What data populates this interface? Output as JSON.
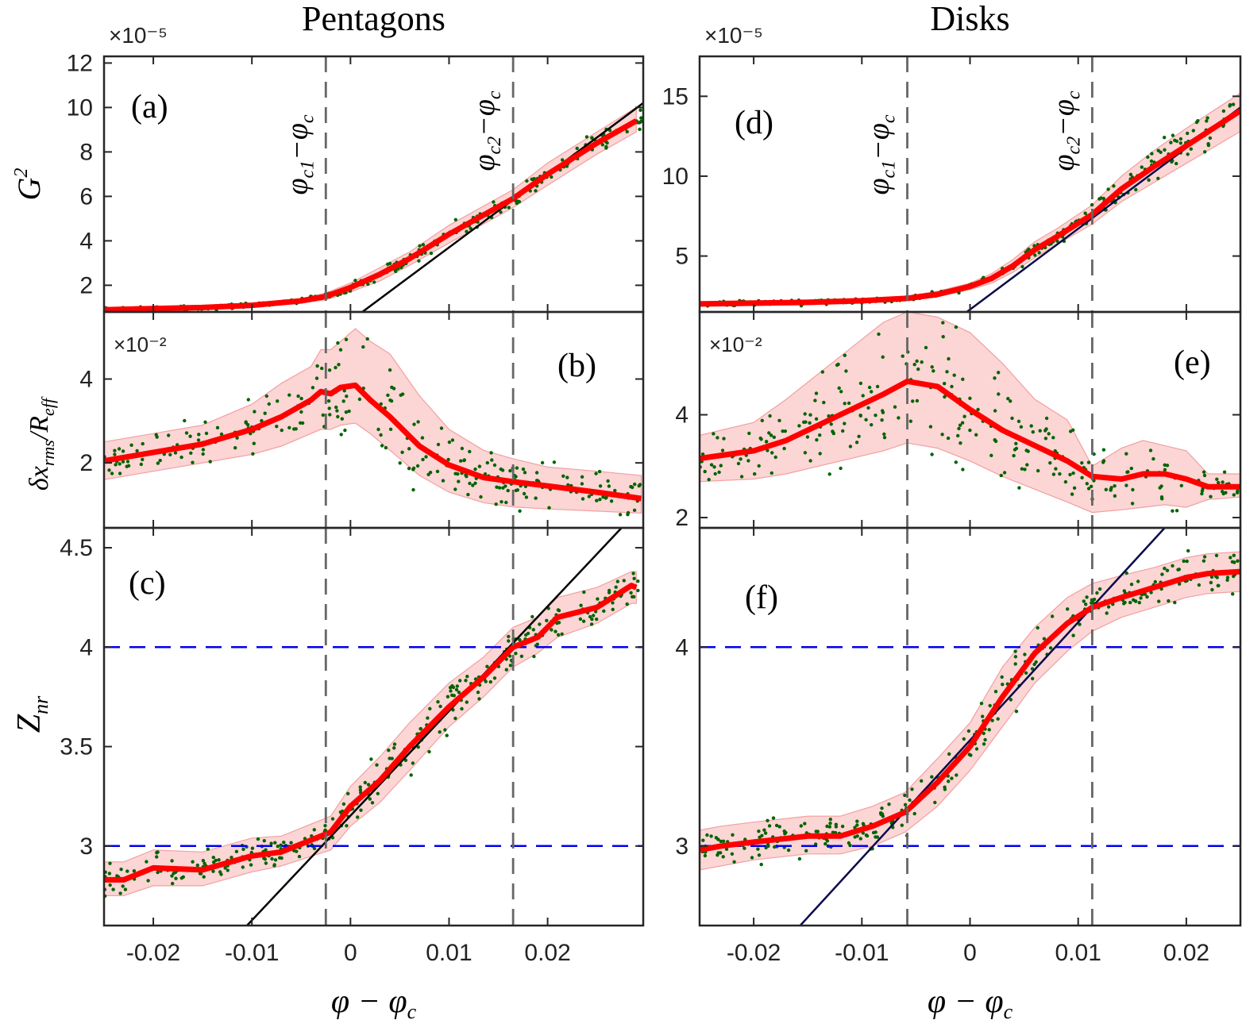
{
  "columns": [
    {
      "title": "Pentagons",
      "xlim": [
        -0.025,
        0.0297
      ],
      "xticks": [
        -0.02,
        -0.01,
        0,
        0.01,
        0.02
      ],
      "xtick_labels": [
        "-0.02",
        "-0.01",
        "0",
        "0.01",
        "0.02"
      ],
      "xlabel": "φ − φc",
      "vlines": [
        -0.0025,
        0.0165
      ],
      "vline_labels": [
        {
          "main": "φ",
          "sub": "c1",
          "tail": "−φ",
          "sub2": "c"
        },
        {
          "main": "φ",
          "sub": "c2",
          "tail": "−φ",
          "sub2": "c"
        }
      ]
    },
    {
      "title": "Disks",
      "xlim": [
        -0.025,
        0.025
      ],
      "xticks": [
        -0.02,
        -0.01,
        0,
        0.01,
        0.02
      ],
      "xtick_labels": [
        "-0.02",
        "-0.01",
        "0",
        "0.01",
        "0.02"
      ],
      "xlabel": "φ − φc",
      "vlines": [
        -0.0058,
        0.0113
      ],
      "vline_labels": [
        {
          "main": "φ",
          "sub": "c1",
          "tail": "−φ",
          "sub2": "c"
        },
        {
          "main": "φ",
          "sub": "c2",
          "tail": "−φ",
          "sub2": "c"
        }
      ]
    }
  ],
  "row_labels": [
    {
      "text": "G",
      "sup": "2"
    },
    {
      "text": "δx",
      "sub": "rms",
      "tail": "/R",
      "sub2": "eff"
    },
    {
      "text": "Z",
      "sub": "nr"
    }
  ],
  "colors": {
    "mean_line": "#ff0000",
    "band_fill": "#fcd5d5",
    "band_edge": "#f2a0a0",
    "points": "#006400",
    "fit_pentagons": "#000000",
    "fit_disks": "#0a0a4a",
    "hlines": "#0000ee",
    "vlines": "#666666",
    "axes": "#262626"
  },
  "chart_data": [
    {
      "panel": "(a)",
      "type": "line",
      "column": "Pentagons",
      "ylabel": "G²",
      "exponent": "×10⁻⁵",
      "ylim": [
        0.8,
        12.3
      ],
      "yticks": [
        2,
        4,
        6,
        8,
        10,
        12
      ],
      "ytick_labels": [
        "2",
        "4",
        "6",
        "8",
        "10",
        "12"
      ],
      "mean": {
        "x": [
          -0.025,
          -0.02,
          -0.015,
          -0.01,
          -0.005,
          -0.0025,
          0,
          0.003,
          0.006,
          0.01,
          0.0165,
          0.02,
          0.025,
          0.029
        ],
        "y": [
          0.9,
          0.95,
          1.0,
          1.1,
          1.3,
          1.5,
          1.9,
          2.5,
          3.2,
          4.3,
          5.9,
          7.0,
          8.4,
          9.4
        ]
      },
      "band": {
        "lower": [
          0.8,
          0.85,
          0.9,
          1.0,
          1.2,
          1.35,
          1.7,
          2.2,
          2.9,
          3.9,
          5.5,
          6.5,
          7.9,
          8.9
        ],
        "upper": [
          1.0,
          1.05,
          1.1,
          1.2,
          1.4,
          1.65,
          2.1,
          2.8,
          3.5,
          4.7,
          6.3,
          7.5,
          8.9,
          10.0
        ]
      },
      "fit_line": {
        "x": [
          0.0012,
          0.0297
        ],
        "y": [
          0.8,
          10.2
        ]
      },
      "scatter": {
        "n": 300,
        "x_range": [
          -0.025,
          0.0295
        ],
        "noise": 0.25
      },
      "vline_labels_shown": true
    },
    {
      "panel": "(b)",
      "type": "line",
      "column": "Pentagons",
      "ylabel": "δx_rms/R_eff",
      "exponent": "×10⁻²",
      "ylim": [
        0.45,
        5.6
      ],
      "yticks": [
        2,
        4
      ],
      "ytick_labels": [
        "2",
        "4"
      ],
      "mean": {
        "x": [
          -0.025,
          -0.02,
          -0.015,
          -0.01,
          -0.007,
          -0.004,
          -0.003,
          -0.002,
          -0.001,
          0.0005,
          0.002,
          0.004,
          0.007,
          0.01,
          0.0135,
          0.0165,
          0.02,
          0.025,
          0.0295
        ],
        "y": [
          2.05,
          2.25,
          2.45,
          2.8,
          3.1,
          3.5,
          3.7,
          3.65,
          3.8,
          3.85,
          3.5,
          3.1,
          2.4,
          1.95,
          1.65,
          1.55,
          1.45,
          1.3,
          1.15
        ]
      },
      "band": {
        "lower": [
          1.6,
          1.8,
          2.0,
          2.2,
          2.4,
          2.7,
          2.8,
          2.8,
          2.9,
          2.95,
          2.7,
          2.3,
          1.7,
          1.3,
          1.05,
          0.95,
          0.9,
          0.85,
          0.8
        ],
        "upper": [
          2.5,
          2.7,
          2.9,
          3.4,
          3.9,
          4.3,
          4.7,
          4.7,
          4.9,
          5.2,
          4.9,
          4.6,
          3.6,
          2.8,
          2.3,
          2.1,
          1.9,
          1.8,
          1.7
        ]
      },
      "scatter": {
        "n": 280,
        "x_range": [
          -0.025,
          0.0295
        ],
        "noise": 0.55
      }
    },
    {
      "panel": "(c)",
      "type": "line",
      "column": "Pentagons",
      "ylabel": "Z_nr",
      "ylim": [
        2.6,
        4.6
      ],
      "yticks": [
        3,
        3.5,
        4,
        4.5
      ],
      "ytick_labels": [
        "3",
        "3.5",
        "4",
        "4.5"
      ],
      "mean": {
        "x": [
          -0.025,
          -0.023,
          -0.02,
          -0.015,
          -0.01,
          -0.007,
          -0.002,
          0,
          0.003,
          0.006,
          0.01,
          0.0135,
          0.0165,
          0.019,
          0.021,
          0.025,
          0.0285,
          0.029
        ],
        "y": [
          2.83,
          2.83,
          2.89,
          2.88,
          2.95,
          2.97,
          3.07,
          3.2,
          3.33,
          3.5,
          3.7,
          3.85,
          4.0,
          4.05,
          4.15,
          4.2,
          4.31,
          4.3
        ]
      },
      "band": {
        "lower": [
          2.75,
          2.75,
          2.8,
          2.8,
          2.87,
          2.9,
          2.98,
          3.1,
          3.22,
          3.38,
          3.6,
          3.75,
          3.9,
          3.97,
          4.05,
          4.12,
          4.22,
          4.22
        ],
        "upper": [
          2.92,
          2.92,
          2.98,
          2.97,
          3.04,
          3.05,
          3.15,
          3.3,
          3.45,
          3.62,
          3.82,
          3.95,
          4.1,
          4.15,
          4.25,
          4.3,
          4.38,
          4.38
        ]
      },
      "fit_line": {
        "x": [
          -0.0105,
          0.0275
        ],
        "y": [
          2.6,
          4.6
        ]
      },
      "hlines": [
        3,
        4
      ],
      "scatter": {
        "n": 320,
        "x_range": [
          -0.025,
          0.0295
        ],
        "noise": 0.06
      }
    },
    {
      "panel": "(d)",
      "type": "line",
      "column": "Disks",
      "ylabel": "G²",
      "exponent": "×10⁻⁵",
      "ylim": [
        1.5,
        17.5
      ],
      "yticks": [
        5,
        10,
        15
      ],
      "ytick_labels": [
        "5",
        "10",
        "15"
      ],
      "mean": {
        "x": [
          -0.025,
          -0.02,
          -0.015,
          -0.01,
          -0.0058,
          -0.003,
          0,
          0.002,
          0.004,
          0.006,
          0.008,
          0.0113,
          0.014,
          0.017,
          0.02,
          0.025
        ],
        "y": [
          2.0,
          2.05,
          2.1,
          2.2,
          2.35,
          2.6,
          3.1,
          3.6,
          4.4,
          5.4,
          6.2,
          7.6,
          9.2,
          10.6,
          11.9,
          14.1
        ]
      },
      "band": {
        "lower": [
          1.85,
          1.9,
          1.95,
          2.05,
          2.2,
          2.45,
          2.9,
          3.3,
          4.0,
          4.9,
          5.7,
          7.0,
          8.4,
          9.6,
          10.8,
          12.8
        ],
        "upper": [
          2.15,
          2.2,
          2.25,
          2.35,
          2.5,
          2.8,
          3.3,
          3.9,
          4.8,
          5.9,
          6.7,
          8.2,
          10.0,
          11.6,
          13.0,
          15.2
        ]
      },
      "fit_line": {
        "x": [
          -0.0003,
          0.025
        ],
        "y": [
          1.5,
          14.3
        ]
      },
      "scatter": {
        "n": 300,
        "x_range": [
          -0.025,
          0.0248
        ],
        "noise": 0.4
      },
      "vline_labels_shown": true
    },
    {
      "panel": "(e)",
      "type": "line",
      "column": "Disks",
      "ylabel": "δx_rms/R_eff",
      "exponent": "×10⁻²",
      "ylim": [
        1.8,
        6.0
      ],
      "yticks": [
        2,
        4
      ],
      "ytick_labels": [
        "2",
        "4"
      ],
      "mean": {
        "x": [
          -0.025,
          -0.02,
          -0.017,
          -0.014,
          -0.011,
          -0.008,
          -0.0058,
          -0.003,
          0,
          0.003,
          0.006,
          0.009,
          0.0113,
          0.014,
          0.016,
          0.018,
          0.02,
          0.022,
          0.025
        ],
        "y": [
          3.15,
          3.3,
          3.5,
          3.8,
          4.1,
          4.4,
          4.65,
          4.55,
          4.1,
          3.7,
          3.4,
          3.1,
          2.8,
          2.75,
          2.85,
          2.85,
          2.75,
          2.6,
          2.6
        ]
      },
      "band": {
        "lower": [
          2.7,
          2.75,
          2.85,
          3.0,
          3.15,
          3.3,
          3.45,
          3.35,
          3.1,
          2.8,
          2.55,
          2.3,
          2.1,
          2.15,
          2.2,
          2.25,
          2.2,
          2.35,
          2.4
        ],
        "upper": [
          3.6,
          3.85,
          4.3,
          4.8,
          5.3,
          5.8,
          6.0,
          5.9,
          5.6,
          5.0,
          4.3,
          3.9,
          3.0,
          3.35,
          3.5,
          3.4,
          3.3,
          2.85,
          2.85
        ]
      },
      "scatter": {
        "n": 280,
        "x_range": [
          -0.025,
          0.0248
        ],
        "noise": 0.55
      }
    },
    {
      "panel": "(f)",
      "type": "line",
      "column": "Disks",
      "ylabel": "Z_nr",
      "ylim": [
        2.6,
        4.6
      ],
      "yticks": [
        3,
        4
      ],
      "ytick_labels": [
        "3",
        "4"
      ],
      "mean": {
        "x": [
          -0.025,
          -0.023,
          -0.02,
          -0.015,
          -0.012,
          -0.009,
          -0.006,
          -0.003,
          0,
          0.003,
          0.006,
          0.009,
          0.0113,
          0.014,
          0.017,
          0.02,
          0.022,
          0.025
        ],
        "y": [
          2.98,
          3.0,
          3.02,
          3.05,
          3.05,
          3.1,
          3.17,
          3.32,
          3.5,
          3.75,
          3.97,
          4.12,
          4.2,
          4.25,
          4.3,
          4.35,
          4.37,
          4.38
        ]
      },
      "band": {
        "lower": [
          2.88,
          2.9,
          2.93,
          2.96,
          2.96,
          3.0,
          3.07,
          3.2,
          3.38,
          3.6,
          3.82,
          3.98,
          4.08,
          4.15,
          4.2,
          4.25,
          4.27,
          4.28
        ],
        "upper": [
          3.08,
          3.1,
          3.12,
          3.15,
          3.15,
          3.2,
          3.27,
          3.44,
          3.62,
          3.9,
          4.1,
          4.25,
          4.32,
          4.36,
          4.4,
          4.45,
          4.47,
          4.48
        ]
      },
      "fit_line": {
        "x": [
          -0.0157,
          0.018
        ],
        "y": [
          2.6,
          4.6
        ]
      },
      "hlines": [
        3,
        4
      ],
      "scatter": {
        "n": 320,
        "x_range": [
          -0.025,
          0.0248
        ],
        "noise": 0.07
      }
    }
  ]
}
